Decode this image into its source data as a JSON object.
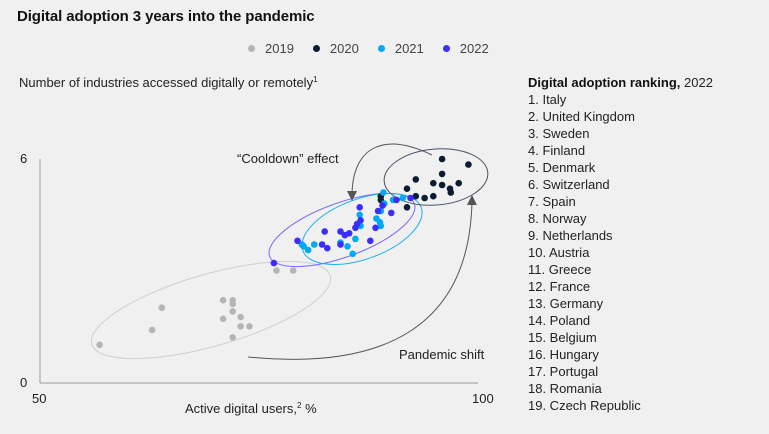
{
  "chart_data": {
    "type": "scatter",
    "title": "Digital adoption 3 years into the pandemic",
    "xlabel": "Active digital users,",
    "xlabel_sup": "2",
    "xlabel_suffix": " %",
    "ylabel": "Number of industries accessed digitally or remotely",
    "ylabel_sup": "1",
    "xlim": [
      50,
      100
    ],
    "ylim": [
      0,
      6
    ],
    "x_ticks": [
      "50",
      "100"
    ],
    "y_ticks": [
      "0",
      "6"
    ],
    "grid": false,
    "legend_position": "top",
    "series": [
      {
        "name": "2019",
        "color": "#b5b5b5",
        "points": [
          [
            56.8,
            1.0
          ],
          [
            62.8,
            1.4
          ],
          [
            63.9,
            2.0
          ],
          [
            70.9,
            2.2
          ],
          [
            70.9,
            1.7
          ],
          [
            72.0,
            2.2
          ],
          [
            72.0,
            2.1
          ],
          [
            72.0,
            1.9
          ],
          [
            72.9,
            1.75
          ],
          [
            72.9,
            1.5
          ],
          [
            73.9,
            1.5
          ],
          [
            72.0,
            1.2
          ],
          [
            77.0,
            3.0
          ],
          [
            78.9,
            3.0
          ]
        ]
      },
      {
        "name": "2020",
        "color": "#0b1c33",
        "points": [
          [
            95.9,
            6.0
          ],
          [
            98.9,
            5.85
          ],
          [
            95.9,
            5.6
          ],
          [
            92.9,
            5.45
          ],
          [
            94.9,
            5.35
          ],
          [
            95.9,
            5.3
          ],
          [
            97.8,
            5.35
          ],
          [
            96.8,
            5.2
          ],
          [
            96.9,
            5.1
          ],
          [
            94.9,
            5.0
          ],
          [
            91.9,
            5.2
          ],
          [
            92.9,
            5.0
          ],
          [
            88.9,
            5.0
          ],
          [
            88.9,
            4.9
          ],
          [
            93.9,
            4.95
          ],
          [
            91.9,
            4.7
          ]
        ]
      },
      {
        "name": "2021",
        "color": "#00a9f4",
        "points": [
          [
            79.9,
            3.7
          ],
          [
            80.1,
            3.65
          ],
          [
            81.3,
            3.7
          ],
          [
            80.6,
            3.55
          ],
          [
            84.3,
            3.75
          ],
          [
            85.1,
            3.65
          ],
          [
            86.0,
            3.85
          ],
          [
            85.7,
            3.45
          ],
          [
            86.5,
            4.5
          ],
          [
            86.6,
            4.2
          ],
          [
            89.3,
            4.8
          ],
          [
            88.9,
            4.6
          ],
          [
            88.4,
            4.4
          ],
          [
            88.8,
            4.3
          ],
          [
            88.9,
            4.2
          ],
          [
            90.3,
            4.9
          ],
          [
            91.4,
            4.95
          ],
          [
            89.2,
            5.1
          ]
        ]
      },
      {
        "name": "2022",
        "color": "#3b2cff",
        "points": [
          [
            76.7,
            3.2
          ],
          [
            79.4,
            3.8
          ],
          [
            82.5,
            4.05
          ],
          [
            82.2,
            3.7
          ],
          [
            82.8,
            3.6
          ],
          [
            84.3,
            4.05
          ],
          [
            84.8,
            3.95
          ],
          [
            85.3,
            4.0
          ],
          [
            84.3,
            3.7
          ],
          [
            86.5,
            4.7
          ],
          [
            89.1,
            4.75
          ],
          [
            86.6,
            4.35
          ],
          [
            86.2,
            4.25
          ],
          [
            86.0,
            4.15
          ],
          [
            88.6,
            4.6
          ],
          [
            88.3,
            4.15
          ],
          [
            90.1,
            4.55
          ],
          [
            90.7,
            4.9
          ],
          [
            87.7,
            3.8
          ],
          [
            92.3,
            4.95
          ]
        ]
      }
    ],
    "annotations": [
      {
        "text": "“Cooldown” effect"
      },
      {
        "text": "Pandemic shift"
      }
    ]
  },
  "legend": [
    {
      "label": "2019",
      "color": "#b5b5b5"
    },
    {
      "label": "2020",
      "color": "#0b1c33"
    },
    {
      "label": "2021",
      "color": "#00a9f4"
    },
    {
      "label": "2022",
      "color": "#3b2cff"
    }
  ],
  "ranking": {
    "title_bold": "Digital adoption ranking,",
    "title_year": " 2022",
    "items": [
      "1. Italy",
      "2. United Kingdom",
      "3. Sweden",
      "4. Finland",
      "5. Denmark",
      "6. Switzerland",
      "7. Spain",
      "8. Norway",
      "9. Netherlands",
      "10. Austria",
      "11. Greece",
      "12. France",
      "13. Germany",
      "14. Poland",
      "15. Belgium",
      "16. Hungary",
      "17. Portugal",
      "18. Romania",
      "19. Czech Republic"
    ]
  }
}
